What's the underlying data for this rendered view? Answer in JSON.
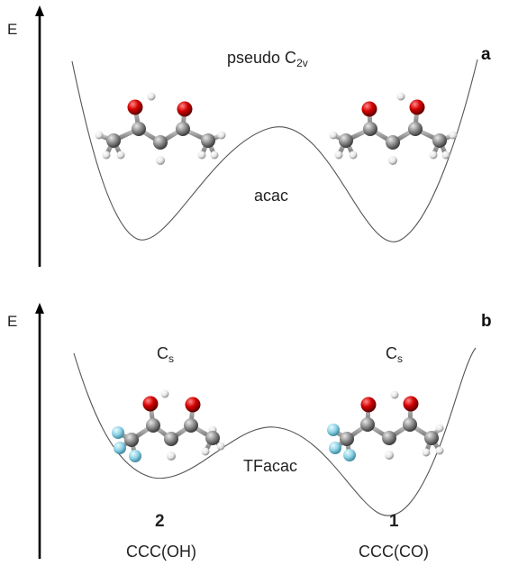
{
  "panel_a": {
    "energy_label": "E",
    "panel_letter": "a",
    "symmetry_base": "pseudo C",
    "symmetry_sub": "2v",
    "molecule_label": "acac"
  },
  "panel_b": {
    "energy_label": "E",
    "panel_letter": "b",
    "left_symmetry_base": "C",
    "left_symmetry_sub": "s",
    "right_symmetry_base": "C",
    "right_symmetry_sub": "s",
    "molecule_label": "TFacac",
    "left_number": "2",
    "right_number": "1",
    "left_conformer": "CCC(OH)",
    "right_conformer": "CCC(CO)"
  },
  "colors": {
    "carbon": "#8a8a8a",
    "oxygen": "#d40000",
    "hydrogen": "#f2f2f2",
    "fluorine": "#8fd3e6",
    "curve": "#555555",
    "axis": "#000000"
  }
}
